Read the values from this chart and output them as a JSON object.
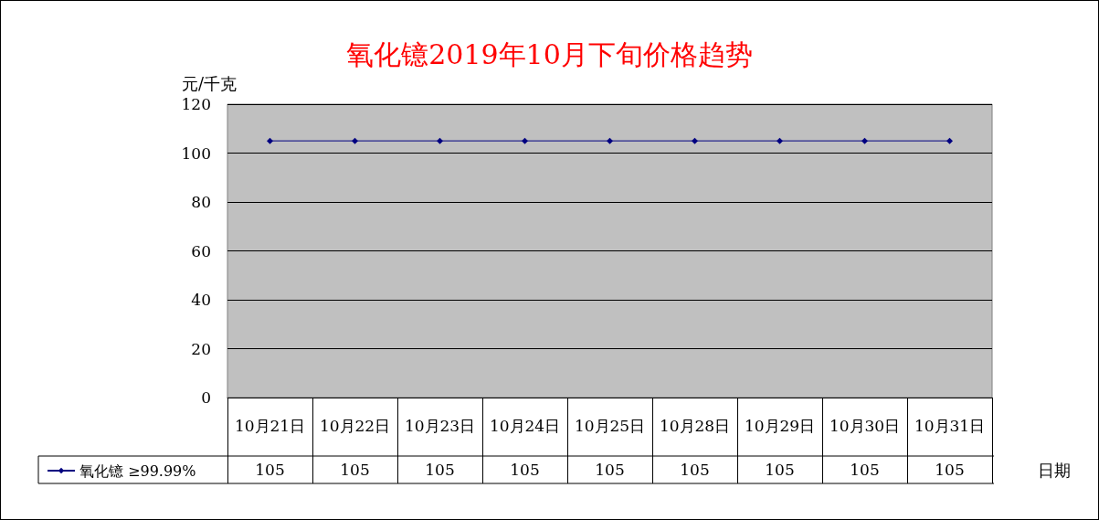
{
  "chart_data": {
    "type": "line",
    "title": "氧化镱2019年10月下旬价格趋势",
    "ylabel": "元/千克",
    "xlabel": "日期",
    "categories": [
      "10月21日",
      "10月22日",
      "10月23日",
      "10月24日",
      "10月25日",
      "10月28日",
      "10月29日",
      "10月30日",
      "10月31日"
    ],
    "series": [
      {
        "name": "氧化镱 ≥99.99%",
        "color": "#000080",
        "values": [
          105,
          105,
          105,
          105,
          105,
          105,
          105,
          105,
          105
        ]
      }
    ],
    "ylim": [
      0,
      120
    ],
    "yticks": [
      0,
      20,
      40,
      60,
      80,
      100,
      120
    ],
    "grid": "y",
    "legend": "bottom",
    "marker": "diamond",
    "line_style": "solid",
    "data_labels": true
  }
}
